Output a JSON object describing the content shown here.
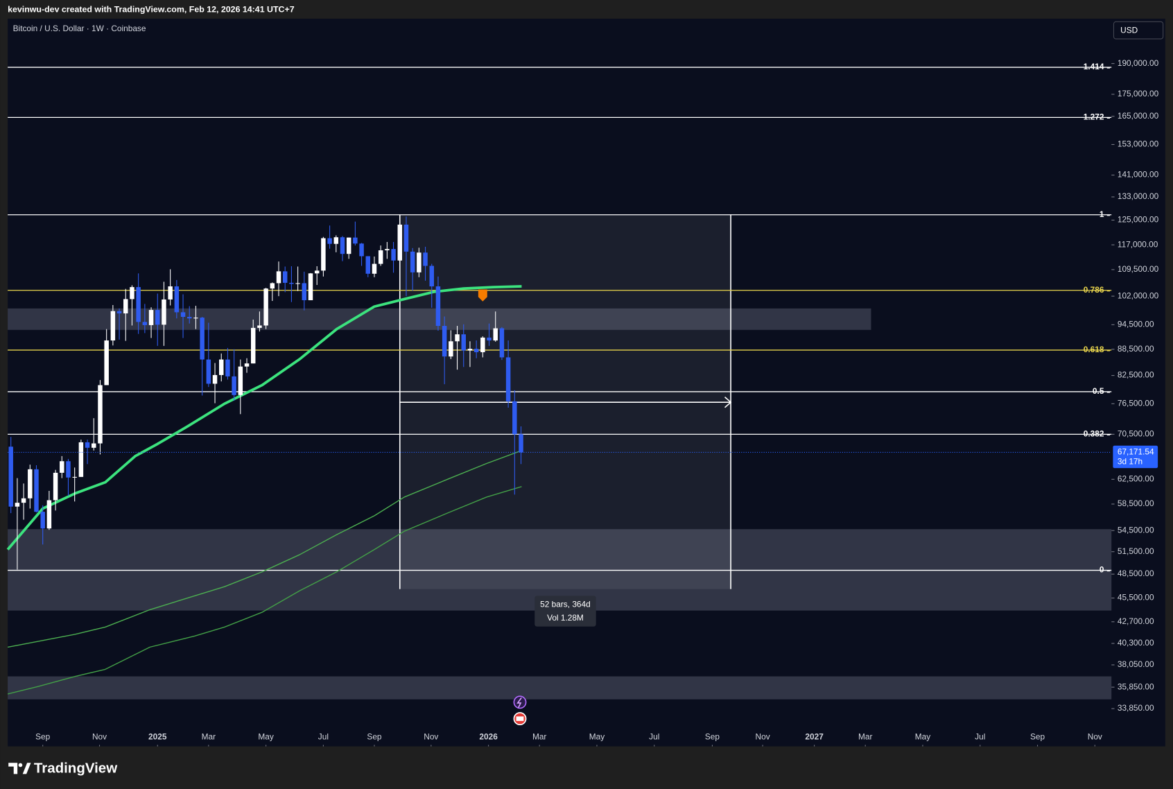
{
  "header": {
    "caption": "kevinwu-dev created with TradingView.com, Feb 12, 2026 14:41 UTC+7"
  },
  "footer": {
    "brand": "TradingView"
  },
  "chart_data": {
    "type": "candlestick",
    "title": "Bitcoin / U.S. Dollar · 1W · Coinbase",
    "currency_button": "USD",
    "log_scale": true,
    "background": "#0a0e1e",
    "up_color": "#ffffff",
    "down_color": "#2f5cf0",
    "open": [
      68200,
      58100,
      58700,
      59400,
      64200,
      57300,
      54800,
      59100,
      63600,
      65600,
      62800,
      62900,
      69000,
      68000,
      68800,
      80400,
      90600,
      98000,
      97400,
      101200,
      104500,
      95200,
      94400,
      98300,
      94500,
      101100,
      104700,
      97700,
      96500,
      96100,
      96300,
      86100,
      80700,
      82600,
      86100,
      82300,
      78300,
      84500,
      85200,
      93700,
      94300,
      104100,
      105600,
      109000,
      105700,
      105400,
      105600,
      100900,
      108400,
      109200,
      119100,
      117300,
      119400,
      114200,
      119300,
      117400,
      113500,
      108300,
      111200,
      115300,
      115700,
      112200,
      123500,
      114900,
      108700,
      114600,
      110600,
      104700,
      94200,
      86800,
      90400,
      92100,
      88200,
      88600,
      87800,
      91300,
      90600,
      93600,
      86600,
      77000,
      70500
    ],
    "high": [
      70000,
      62700,
      61800,
      65000,
      64900,
      58300,
      60600,
      64100,
      66500,
      66000,
      64500,
      69500,
      69500,
      73600,
      81500,
      93400,
      99600,
      98700,
      104000,
      105000,
      108400,
      99900,
      99000,
      102700,
      106000,
      109600,
      106500,
      102500,
      99300,
      99400,
      96500,
      95000,
      85300,
      87500,
      88800,
      88500,
      86100,
      86400,
      95800,
      97900,
      104300,
      105800,
      111900,
      110400,
      110500,
      110400,
      108900,
      108500,
      110500,
      119500,
      123200,
      120000,
      119800,
      119300,
      124500,
      117600,
      113500,
      113400,
      116800,
      117900,
      117900,
      125700,
      126200,
      116000,
      116100,
      116400,
      111200,
      107500,
      96600,
      93100,
      94200,
      94600,
      90400,
      90600,
      91600,
      94800,
      97900,
      93900,
      90600,
      79300,
      72000
    ],
    "low": [
      57100,
      49100,
      56100,
      57800,
      57200,
      52500,
      54600,
      57500,
      62700,
      59800,
      58900,
      62900,
      65100,
      67500,
      66800,
      80400,
      89400,
      90800,
      90500,
      94300,
      92200,
      92400,
      91200,
      89300,
      89300,
      99500,
      96100,
      91200,
      94800,
      93400,
      78200,
      80000,
      76600,
      81200,
      81600,
      77100,
      74400,
      83100,
      85200,
      92800,
      93400,
      100700,
      102000,
      103100,
      100400,
      103400,
      98200,
      100900,
      105100,
      107500,
      115800,
      114700,
      112000,
      112700,
      116800,
      110600,
      107300,
      107300,
      110600,
      112700,
      108600,
      111800,
      102000,
      103500,
      107300,
      106300,
      98900,
      93000,
      80600,
      86200,
      83800,
      84400,
      84400,
      86400,
      86600,
      89300,
      90300,
      86000,
      75700,
      60000,
      65100
    ],
    "close": [
      58100,
      58700,
      59400,
      64200,
      57300,
      54800,
      59100,
      63600,
      65600,
      62800,
      62900,
      69000,
      68000,
      68800,
      80400,
      90600,
      98000,
      97400,
      101200,
      104500,
      95200,
      94400,
      98300,
      94500,
      101100,
      104700,
      97700,
      96500,
      96100,
      96300,
      86100,
      80700,
      82600,
      86100,
      82300,
      78300,
      84500,
      85200,
      93700,
      94300,
      104100,
      105600,
      109000,
      105700,
      105400,
      105600,
      100900,
      108400,
      109200,
      119100,
      117300,
      119400,
      114200,
      119300,
      117400,
      113500,
      108300,
      111200,
      115300,
      115700,
      112200,
      123500,
      114900,
      108700,
      114600,
      110600,
      104700,
      94200,
      86800,
      90400,
      92100,
      88200,
      88600,
      87800,
      91300,
      90600,
      93600,
      86600,
      77000,
      70500,
      67171.54
    ],
    "price_line": {
      "label": "67,171.54",
      "countdown": "3d 17h",
      "color": "#2962ff"
    },
    "moving_averages": [
      {
        "color": "#3ce37e",
        "width": 3.5,
        "x": [
          -0.5,
          5.0,
          10.1,
          14.8,
          19.5,
          23.0,
          27.7,
          33.5,
          39.4,
          45.3,
          51.1,
          57.0,
          61.7,
          66.4,
          71.0,
          75.7,
          80.1
        ],
        "values": [
          51800,
          57800,
          60200,
          62000,
          66500,
          68700,
          72000,
          76500,
          80400,
          86200,
          93400,
          99200,
          101200,
          103200,
          104100,
          104500,
          104700
        ]
      },
      {
        "color": "#4caf50",
        "width": 1.3,
        "x": [
          -0.5,
          10.1,
          14.8,
          21.8,
          27.7,
          33.5,
          39.4,
          45.3,
          51.1,
          57.0,
          61.7,
          68.7,
          74.6,
          80.1
        ],
        "values": [
          39900,
          41300,
          42100,
          44100,
          45500,
          46900,
          48800,
          51100,
          53900,
          56700,
          59600,
          62600,
          65200,
          67500
        ]
      },
      {
        "color": "#43a047",
        "width": 1.3,
        "x": [
          -0.5,
          4.2,
          10.1,
          14.8,
          21.8,
          28.8,
          33.5,
          39.4,
          45.3,
          51.1,
          57.0,
          61.7,
          68.7,
          74.6,
          80.1
        ],
        "values": [
          35200,
          35900,
          36900,
          37600,
          39900,
          41100,
          42100,
          43800,
          46400,
          48800,
          51800,
          54400,
          57200,
          59600,
          61300
        ]
      }
    ],
    "fib_levels": [
      {
        "level": 1.414,
        "price": 188100,
        "color": "#ffffff"
      },
      {
        "level": 1.272,
        "price": 164500,
        "color": "#ffffff"
      },
      {
        "level": 1,
        "price": 126800,
        "color": "#ffffff"
      },
      {
        "level": 0.786,
        "price": 103600,
        "color": "#e8d44d"
      },
      {
        "level": 0.618,
        "price": 88300,
        "color": "#e8d44d"
      },
      {
        "level": 0.5,
        "price": 79000,
        "color": "#ffffff"
      },
      {
        "level": 0.382,
        "price": 70500,
        "color": "#ffffff"
      },
      {
        "level": 0,
        "price": 49000,
        "color": "#ffffff"
      }
    ],
    "zones": [
      {
        "from": -0.5,
        "to": 134.9,
        "top": 98700,
        "bottom": 93200
      },
      {
        "from": -0.5,
        "to": 172.6,
        "top": 54700,
        "bottom": 44000
      },
      {
        "from": -0.5,
        "to": 172.6,
        "top": 36900,
        "bottom": 34700
      }
    ],
    "measure": {
      "label": "52 bars, 364d",
      "volume": "Vol 1.28M",
      "start": 61,
      "end": 112.9,
      "top": 126800,
      "bottom": 46600,
      "arrow_price": 76800
    },
    "marker": {
      "x": 74,
      "price": 102200,
      "color": "#f57c00"
    },
    "xlim": [
      -0.5,
      172.6
    ],
    "ylim": [
      30600,
      214200
    ],
    "xticks": [
      {
        "value": 5.0,
        "label": "Sep"
      },
      {
        "value": 13.9,
        "label": "Nov"
      },
      {
        "value": 23.0,
        "label": "2025"
      },
      {
        "value": 31.0,
        "label": "Mar"
      },
      {
        "value": 40.0,
        "label": "May"
      },
      {
        "value": 49.0,
        "label": "Jul"
      },
      {
        "value": 57.0,
        "label": "Sep"
      },
      {
        "value": 65.9,
        "label": "Nov"
      },
      {
        "value": 74.9,
        "label": "2026"
      },
      {
        "value": 82.9,
        "label": "Mar"
      },
      {
        "value": 91.9,
        "label": "May"
      },
      {
        "value": 100.9,
        "label": "Jul"
      },
      {
        "value": 110.0,
        "label": "Sep"
      },
      {
        "value": 117.9,
        "label": "Nov"
      },
      {
        "value": 126.0,
        "label": "2027"
      },
      {
        "value": 134.0,
        "label": "Mar"
      },
      {
        "value": 143.0,
        "label": "May"
      },
      {
        "value": 152.0,
        "label": "Jul"
      },
      {
        "value": 161.0,
        "label": "Sep"
      },
      {
        "value": 170.0,
        "label": "Nov"
      }
    ],
    "yticks": [
      {
        "value": 190000,
        "label": "190,000.00"
      },
      {
        "value": 175000,
        "label": "175,000.00"
      },
      {
        "value": 165000,
        "label": "165,000.00"
      },
      {
        "value": 153000,
        "label": "153,000.00"
      },
      {
        "value": 141000,
        "label": "141,000.00"
      },
      {
        "value": 133000,
        "label": "133,000.00"
      },
      {
        "value": 125000,
        "label": "125,000.00"
      },
      {
        "value": 117000,
        "label": "117,000.00"
      },
      {
        "value": 109500,
        "label": "109,500.00"
      },
      {
        "value": 102000,
        "label": "102,000.00"
      },
      {
        "value": 94500,
        "label": "94,500.00"
      },
      {
        "value": 88500,
        "label": "88,500.00"
      },
      {
        "value": 82500,
        "label": "82,500.00"
      },
      {
        "value": 76500,
        "label": "76,500.00"
      },
      {
        "value": 70500,
        "label": "70,500.00"
      },
      {
        "value": 62500,
        "label": "62,500.00"
      },
      {
        "value": 58500,
        "label": "58,500.00"
      },
      {
        "value": 54500,
        "label": "54,500.00"
      },
      {
        "value": 51500,
        "label": "51,500.00"
      },
      {
        "value": 48500,
        "label": "48,500.00"
      },
      {
        "value": 45500,
        "label": "45,500.00"
      },
      {
        "value": 42700,
        "label": "42,700.00"
      },
      {
        "value": 40300,
        "label": "40,300.00"
      },
      {
        "value": 38050,
        "label": "38,050.00"
      },
      {
        "value": 35850,
        "label": "35,850.00"
      },
      {
        "value": 33850,
        "label": "33,850.00"
      }
    ]
  }
}
